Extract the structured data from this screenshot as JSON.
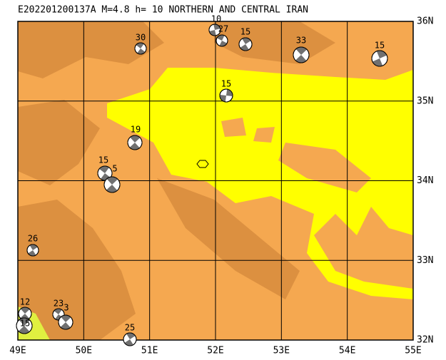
{
  "title": "E202201200137A M=4.8 h= 10 NORTHERN AND CENTRAL IRAN",
  "lon_labels": [
    "49E",
    "50E",
    "51E",
    "52E",
    "53E",
    "54E",
    "55E"
  ],
  "lat_labels": [
    "36N",
    "35N",
    "34N",
    "33N",
    "32N"
  ],
  "events": [
    {
      "depth": "30"
    },
    {
      "depth": "10"
    },
    {
      "depth": "27"
    },
    {
      "depth": "15"
    },
    {
      "depth": "33"
    },
    {
      "depth": "15"
    },
    {
      "depth": "15"
    },
    {
      "depth": "19"
    },
    {
      "depth": "15"
    },
    {
      "depth": "5"
    },
    {
      "depth": "26"
    },
    {
      "depth": "12"
    },
    {
      "depth": "23"
    },
    {
      "depth": "3"
    },
    {
      "depth": "15"
    },
    {
      "depth": "25"
    }
  ]
}
